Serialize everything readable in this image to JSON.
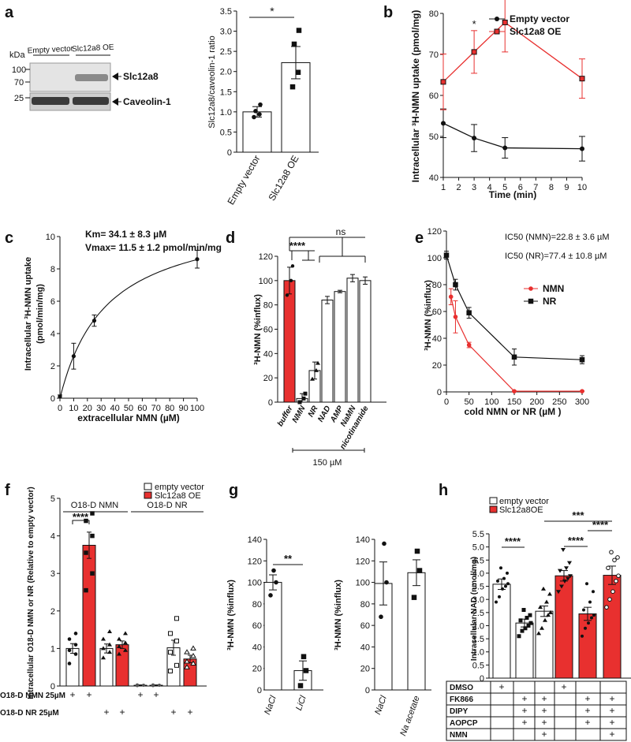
{
  "colors": {
    "red": "#e8302f",
    "black": "#111111",
    "grey": "#555555",
    "white": "#ffffff"
  },
  "panel_letters": [
    "a",
    "b",
    "c",
    "d",
    "e",
    "f",
    "g",
    "h"
  ],
  "chart_data": [
    {
      "id": "a_blot",
      "type": "other",
      "kda_label": "kDa",
      "lanes": [
        "Empty vector",
        "Slc12a8 OE"
      ],
      "markers": [
        "100",
        "70",
        "25"
      ],
      "band_labels": [
        "Slc12a8",
        "Caveolin-1"
      ]
    },
    {
      "id": "a_bar",
      "type": "bar",
      "categories": [
        "Empty vector",
        "Slc12a8 OE"
      ],
      "values": [
        1.0,
        2.22
      ],
      "errors": [
        0.13,
        0.4
      ],
      "points": [
        [
          0.87,
          0.94,
          1.02,
          1.18
        ],
        [
          1.62,
          1.98,
          2.68,
          3.02
        ]
      ],
      "ylabel": "Slc12a8/caveolin-1 ratio",
      "ylim": [
        0,
        3.5
      ],
      "yticks": [
        "0",
        "0.5",
        "1.0",
        "1.5",
        "2.0",
        "2.5",
        "3.0",
        "3.5"
      ],
      "sig": "*"
    },
    {
      "id": "b",
      "type": "line",
      "x": [
        1,
        3,
        5,
        10
      ],
      "series": [
        {
          "name": "Empty vector",
          "values": [
            53.2,
            49.6,
            47.2,
            47.0
          ],
          "errors": [
            3.5,
            3.3,
            2.5,
            3.0
          ]
        },
        {
          "name": "Slc12a8 OE",
          "values": [
            63.3,
            70.6,
            77.8,
            64.1
          ],
          "errors": [
            6.8,
            5.2,
            7.2,
            4.8
          ]
        }
      ],
      "xlabel": "Time (min)",
      "ylabel": "Intracellular ³H-NMN uptake (pmol/mg)",
      "xlim": [
        1,
        10
      ],
      "ylim": [
        40,
        80
      ],
      "xticks": [
        "1",
        "2",
        "3",
        "4",
        "5",
        "6",
        "7",
        "8",
        "9",
        "10"
      ],
      "yticks": [
        "40",
        "50",
        "60",
        "70",
        "80"
      ],
      "sig": [
        "*",
        "***"
      ],
      "legend": "top-right"
    },
    {
      "id": "c",
      "type": "line",
      "x": [
        0,
        10,
        25,
        100
      ],
      "values": [
        0.1,
        2.6,
        4.8,
        8.6
      ],
      "errors": [
        0.1,
        0.8,
        0.35,
        0.55
      ],
      "xlabel": "extracellular NMN (µM)",
      "ylabel": "Intracellular ³H-NMN uptake (pmol/min/mg)",
      "xlim": [
        0,
        100
      ],
      "ylim": [
        0,
        10
      ],
      "xticks": [
        "0",
        "10",
        "20",
        "30",
        "40",
        "50",
        "60",
        "70",
        "80",
        "90",
        "100"
      ],
      "yticks": [
        "0",
        "2",
        "4",
        "6",
        "8",
        "10"
      ],
      "annotations": [
        "Km= 34.1 ± 8.3 µM",
        "Vmax= 11.5 ± 1.2 pmol/min/mg"
      ],
      "km": 34.1,
      "vmax": 11.5
    },
    {
      "id": "d",
      "type": "bar",
      "categories": [
        "buffer",
        "NMN",
        "NR",
        "NAD",
        "AMP",
        "NaMN",
        "nicotinamide"
      ],
      "values": [
        100,
        3,
        26,
        84,
        91,
        102,
        100
      ],
      "errors": [
        11,
        4,
        7,
        3,
        1,
        3,
        3
      ],
      "ylabel": "³H-NMN (%influx)",
      "ylim": [
        0,
        120
      ],
      "yticks": [
        "0",
        "20",
        "40",
        "60",
        "80",
        "100",
        "120"
      ],
      "sig": [
        "****",
        "ns"
      ],
      "concentration_label": "150 µM"
    },
    {
      "id": "e",
      "type": "line",
      "x": [
        0,
        10,
        20,
        50,
        150,
        300
      ],
      "series": [
        {
          "name": "NMN",
          "values": [
            null,
            71,
            56,
            35,
            0.5,
            0.5
          ],
          "errors": [
            0,
            6,
            12,
            2,
            0.3,
            0.3
          ]
        },
        {
          "name": "NR",
          "values": [
            102,
            null,
            80,
            59,
            26,
            24
          ],
          "errors": [
            3,
            0,
            4,
            4,
            6,
            3
          ]
        }
      ],
      "xlabel": "cold NMN or NR (µM )",
      "ylabel": "³H-NMN (%influx)",
      "xlim": [
        0,
        300
      ],
      "ylim": [
        0,
        120
      ],
      "xticks": [
        "0",
        "50",
        "100",
        "150",
        "200",
        "250",
        "300"
      ],
      "yticks": [
        "0",
        "20",
        "40",
        "60",
        "80",
        "100",
        "120"
      ],
      "annotations": [
        "IC50 (NMN)=22.8 ± 3.6 µM",
        "IC50 (NR)=77.4 ± 10.8 µM"
      ],
      "legend": "right"
    },
    {
      "id": "f",
      "type": "bar",
      "groups": [
        "O18-D NMN",
        "O18-D NR"
      ],
      "legend": [
        "empty vector",
        "Slc12a8 OE"
      ],
      "values": [
        1.0,
        3.75,
        1.0,
        1.1,
        0.02,
        0.02,
        1.02,
        0.72
      ],
      "errors": [
        0.13,
        0.35,
        0.12,
        0.1,
        0.01,
        0.01,
        0.2,
        0.1
      ],
      "fill": [
        "white",
        "red",
        "white",
        "red",
        "white",
        "red",
        "white",
        "red"
      ],
      "ylabel": "Intracellular O18-D NMN or NR (Relative to empty vector)",
      "ylim": [
        0,
        5
      ],
      "yticks": [
        "0",
        "1",
        "2",
        "3",
        "4",
        "5"
      ],
      "row_labels": [
        "O18-D NMN 25µM",
        "O18-D NR 25µM"
      ],
      "row1": [
        "+",
        "+",
        "",
        "",
        "+",
        "+",
        "",
        ""
      ],
      "row2": [
        "",
        "",
        "+",
        "+",
        "",
        "",
        "+",
        "+"
      ],
      "sig": "****"
    },
    {
      "id": "g1",
      "type": "bar",
      "categories": [
        "NaCl",
        "LiCl"
      ],
      "values": [
        100,
        18
      ],
      "errors": [
        7,
        9
      ],
      "points": [
        [
          88,
          100,
          111
        ],
        [
          4,
          18,
          31
        ]
      ],
      "ylabel": "³H-NMN (%influx)",
      "ylim": [
        0,
        140
      ],
      "yticks": [
        "0",
        "20",
        "40",
        "60",
        "80",
        "100",
        "120",
        "140"
      ],
      "sig": "**"
    },
    {
      "id": "g2",
      "type": "bar",
      "categories": [
        "NaCl",
        "Na acetate"
      ],
      "values": [
        99,
        109
      ],
      "errors": [
        20,
        12
      ],
      "points": [
        [
          68,
          100,
          136
        ],
        [
          86,
          111,
          129
        ]
      ],
      "ylabel": "³H-NMN (%influx)",
      "ylim": [
        0,
        140
      ],
      "yticks": [
        "0",
        "20",
        "40",
        "60",
        "80",
        "100",
        "120",
        "140"
      ]
    },
    {
      "id": "h",
      "type": "bar",
      "legend": [
        "empty vector",
        "Slc12a8OE"
      ],
      "values": [
        3.58,
        2.1,
        2.55,
        3.9,
        2.45,
        3.92
      ],
      "errors": [
        0.2,
        0.15,
        0.2,
        0.2,
        0.25,
        0.35
      ],
      "fill": [
        "white",
        "white",
        "white",
        "red",
        "red",
        "red"
      ],
      "ylabel": "Intracellular NAD (nmol/mg)",
      "ylim": [
        0,
        5.5
      ],
      "yticks": [
        "0",
        "0.5",
        "1.0",
        "1.5",
        "2.0",
        "2.5",
        "3.0",
        "3.5",
        "4.0",
        "4.5",
        "5.0",
        "5.5"
      ],
      "table_rows": [
        "DMSO",
        "FK866",
        "DIPY",
        "AOPCP",
        "NMN"
      ],
      "table": [
        [
          "+",
          "",
          "",
          "+",
          "",
          ""
        ],
        [
          "",
          "+",
          "+",
          "",
          "+",
          "+"
        ],
        [
          "",
          "+",
          "+",
          "",
          "+",
          "+"
        ],
        [
          "",
          "+",
          "+",
          "",
          "+",
          "+"
        ],
        [
          "",
          "",
          "+",
          "",
          "",
          "+"
        ]
      ],
      "sig": [
        "****",
        "****",
        "****",
        "***"
      ]
    }
  ]
}
